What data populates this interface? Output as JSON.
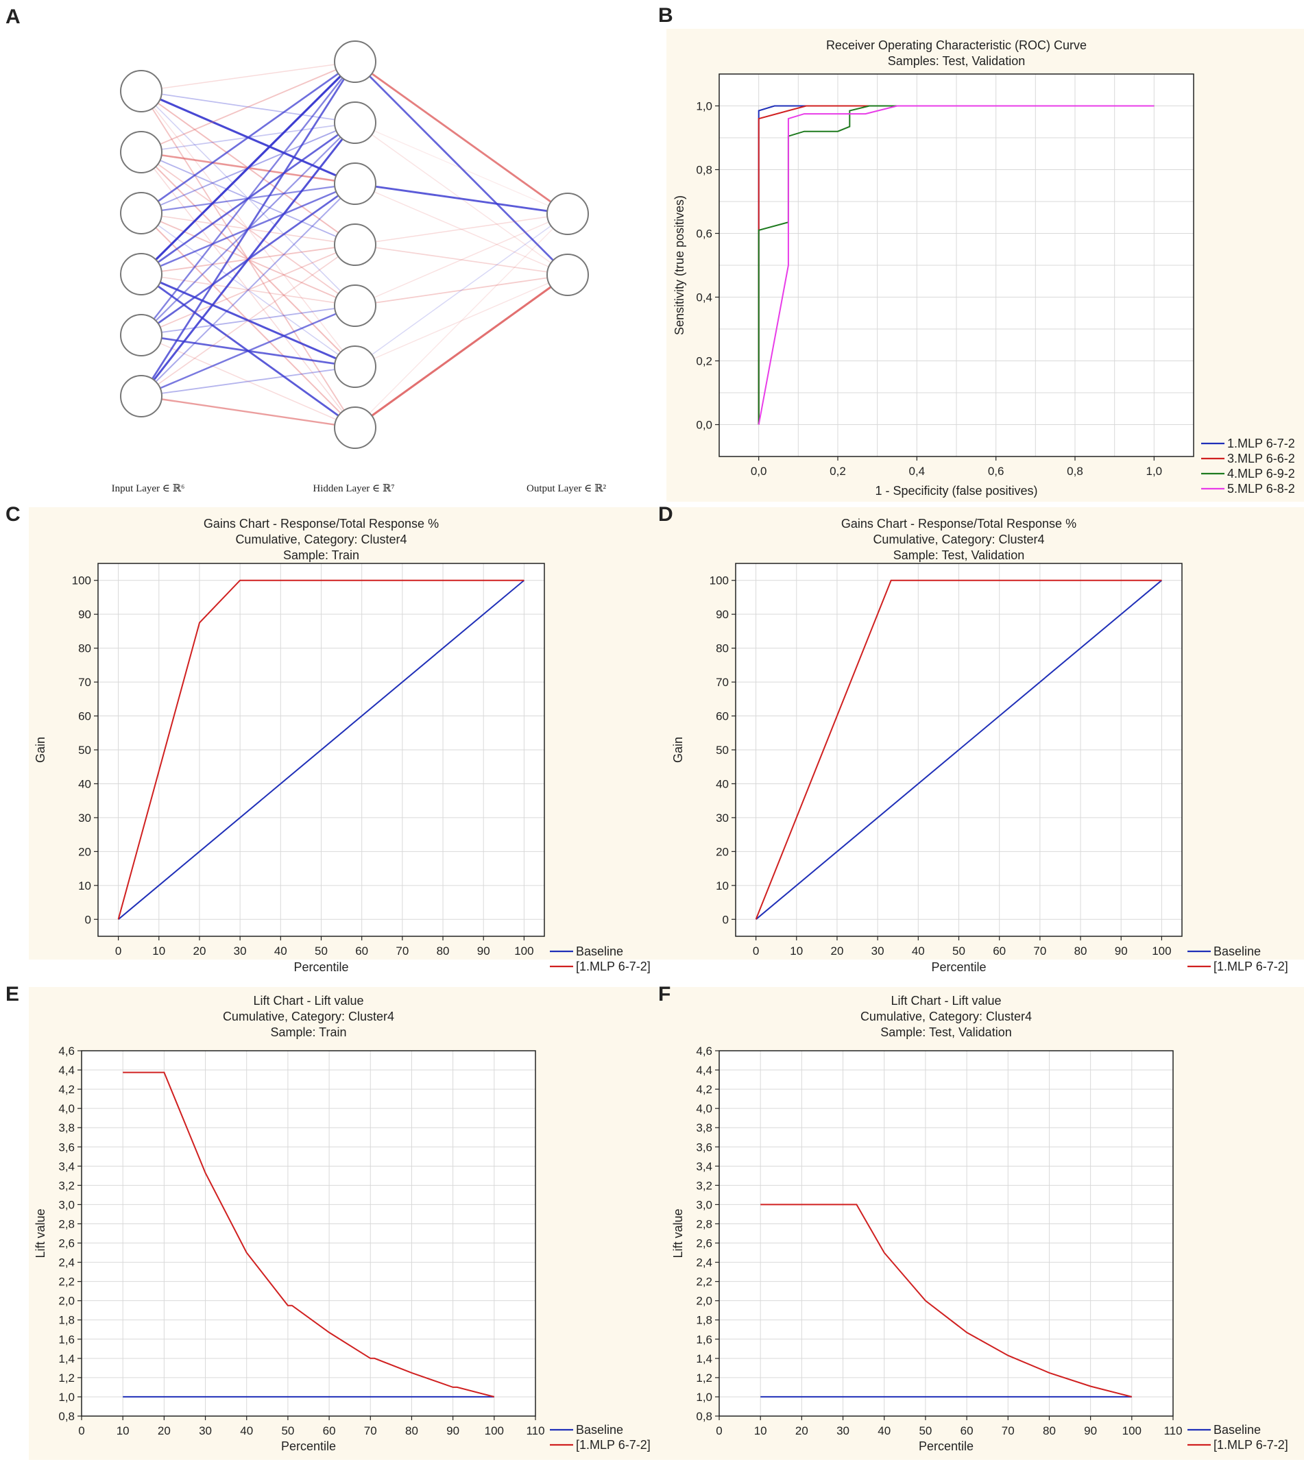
{
  "colors": {
    "panel_bg": "#fdf8ec",
    "grid": "#d9d9d9",
    "axis": "#222222",
    "blue": "#1f2fb8",
    "red": "#d02020",
    "green": "#1e7a1e",
    "magenta": "#e83ce8",
    "node_stroke": "#777777",
    "pos_weight": "#e06565",
    "neg_weight": "#3a3ad0"
  },
  "panel_letters": [
    "A",
    "B",
    "C",
    "D",
    "E",
    "F"
  ],
  "network": {
    "layers": [
      {
        "label": "Input Layer ∈ ℝ⁶",
        "nodes": 6
      },
      {
        "label": "Hidden Layer ∈ ℝ⁷",
        "nodes": 7
      },
      {
        "label": "Output Layer ∈ ℝ²",
        "nodes": 2
      }
    ],
    "input_hidden": [
      [
        0.15,
        -0.25,
        -0.85,
        0.35,
        -0.15,
        0.12,
        0.3
      ],
      [
        0.3,
        -0.2,
        0.6,
        -0.3,
        0.25,
        0.35,
        0.15
      ],
      [
        -0.65,
        -0.35,
        -0.5,
        0.2,
        0.3,
        -0.15,
        0.35
      ],
      [
        -0.9,
        -0.7,
        -0.6,
        0.3,
        0.2,
        -0.8,
        -0.75
      ],
      [
        -0.55,
        -0.45,
        -0.7,
        0.25,
        -0.3,
        -0.7,
        0.15
      ],
      [
        -0.7,
        -0.8,
        -0.35,
        0.2,
        -0.6,
        -0.3,
        0.55
      ]
    ],
    "hidden_output": [
      [
        0.75,
        -0.7
      ],
      [
        0.05,
        0.1
      ],
      [
        -0.75,
        0.12
      ],
      [
        0.15,
        0.2
      ],
      [
        0.12,
        0.25
      ],
      [
        -0.12,
        0.1
      ],
      [
        0.08,
        0.85
      ]
    ]
  },
  "charts": [
    {
      "id": "roc",
      "title_lines": [
        "Receiver Operating Characteristic (ROC) Curve",
        "Samples: Test, Validation"
      ],
      "chart_data": {
        "type": "line",
        "title": "Receiver Operating Characteristic (ROC) Curve",
        "xlabel": "1 - Specificity (false positives)",
        "ylabel": "Sensitivity (true positives)",
        "xlim": [
          -0.1,
          1.1
        ],
        "ylim": [
          -0.1,
          1.1
        ],
        "xticks": [
          0.0,
          0.2,
          0.4,
          0.6,
          0.8,
          1.0
        ],
        "yticks": [
          0.0,
          0.2,
          0.4,
          0.6,
          0.8,
          1.0
        ],
        "xtick_labels": [
          "0,0",
          "0,2",
          "0,4",
          "0,6",
          "0,8",
          "1,0"
        ],
        "ytick_labels": [
          "0,0",
          "0,2",
          "0,4",
          "0,6",
          "0,8",
          "1,0"
        ],
        "grid_step_x": 0.1,
        "grid_step_y": 0.1,
        "series": [
          {
            "name": "1.MLP 6-7-2",
            "color": "blue",
            "x": [
              0,
              0,
              0.04,
              1.0
            ],
            "y": [
              0,
              0.985,
              1.0,
              1.0
            ]
          },
          {
            "name": "3.MLP 6-6-2",
            "color": "red",
            "x": [
              0,
              0,
              0.12,
              1.0
            ],
            "y": [
              0,
              0.96,
              1.0,
              1.0
            ]
          },
          {
            "name": "4.MLP 6-9-2",
            "color": "green",
            "x": [
              0,
              0,
              0.075,
              0.075,
              0.115,
              0.2,
              0.23,
              0.23,
              0.28,
              0.33,
              1.0
            ],
            "y": [
              0,
              0.61,
              0.635,
              0.905,
              0.92,
              0.92,
              0.935,
              0.985,
              1.0,
              1.0,
              1.0
            ]
          },
          {
            "name": "5.MLP 6-8-2",
            "color": "magenta",
            "x": [
              0,
              0.075,
              0.075,
              0.115,
              0.27,
              0.35,
              1.0
            ],
            "y": [
              0,
              0.5,
              0.96,
              0.975,
              0.975,
              1.0,
              1.0
            ]
          }
        ]
      }
    },
    {
      "id": "gains-train",
      "title_lines": [
        "Gains Chart - Response/Total Response %",
        "Cumulative, Category: Cluster4",
        "Sample: Train"
      ],
      "chart_data": {
        "type": "line",
        "title": "Gains Chart - Response/Total Response %",
        "xlabel": "Percentile",
        "ylabel": "Gain",
        "xlim": [
          -5,
          105
        ],
        "ylim": [
          -5,
          105
        ],
        "xticks": [
          0,
          10,
          20,
          30,
          40,
          50,
          60,
          70,
          80,
          90,
          100
        ],
        "yticks": [
          0,
          10,
          20,
          30,
          40,
          50,
          60,
          70,
          80,
          90,
          100
        ],
        "xtick_labels": [
          "0",
          "10",
          "20",
          "30",
          "40",
          "50",
          "60",
          "70",
          "80",
          "90",
          "100"
        ],
        "ytick_labels": [
          "0",
          "10",
          "20",
          "30",
          "40",
          "50",
          "60",
          "70",
          "80",
          "90",
          "100"
        ],
        "grid_step_x": 10,
        "grid_step_y": 10,
        "series": [
          {
            "name": "Baseline",
            "color": "blue",
            "x": [
              0,
              100
            ],
            "y": [
              0,
              100
            ]
          },
          {
            "name": "[1.MLP 6-7-2]",
            "color": "red",
            "x": [
              0,
              20,
              30,
              100
            ],
            "y": [
              0,
              87.5,
              100,
              100
            ]
          }
        ]
      }
    },
    {
      "id": "gains-test",
      "title_lines": [
        "Gains Chart - Response/Total Response %",
        "Cumulative, Category: Cluster4",
        "Sample: Test, Validation"
      ],
      "chart_data": {
        "type": "line",
        "title": "Gains Chart - Response/Total Response %",
        "xlabel": "Percentile",
        "ylabel": "Gain",
        "xlim": [
          -5,
          105
        ],
        "ylim": [
          -5,
          105
        ],
        "xticks": [
          0,
          10,
          20,
          30,
          40,
          50,
          60,
          70,
          80,
          90,
          100
        ],
        "yticks": [
          0,
          10,
          20,
          30,
          40,
          50,
          60,
          70,
          80,
          90,
          100
        ],
        "xtick_labels": [
          "0",
          "10",
          "20",
          "30",
          "40",
          "50",
          "60",
          "70",
          "80",
          "90",
          "100"
        ],
        "ytick_labels": [
          "0",
          "10",
          "20",
          "30",
          "40",
          "50",
          "60",
          "70",
          "80",
          "90",
          "100"
        ],
        "grid_step_x": 10,
        "grid_step_y": 10,
        "series": [
          {
            "name": "Baseline",
            "color": "blue",
            "x": [
              0,
              100
            ],
            "y": [
              0,
              100
            ]
          },
          {
            "name": "[1.MLP 6-7-2]",
            "color": "red",
            "x": [
              0,
              33.3,
              100
            ],
            "y": [
              0,
              100,
              100
            ]
          }
        ]
      }
    },
    {
      "id": "lift-train",
      "title_lines": [
        "Lift Chart - Lift value",
        "Cumulative, Category: Cluster4",
        "Sample: Train"
      ],
      "chart_data": {
        "type": "line",
        "title": "Lift Chart - Lift value",
        "xlabel": "Percentile",
        "ylabel": "Lift value",
        "xlim": [
          0,
          110
        ],
        "ylim": [
          0.8,
          4.6
        ],
        "xticks": [
          0,
          10,
          20,
          30,
          40,
          50,
          60,
          70,
          80,
          90,
          100,
          110
        ],
        "yticks": [
          0.8,
          1.0,
          1.2,
          1.4,
          1.6,
          1.8,
          2.0,
          2.2,
          2.4,
          2.6,
          2.8,
          3.0,
          3.2,
          3.4,
          3.6,
          3.8,
          4.0,
          4.2,
          4.4,
          4.6
        ],
        "xtick_labels": [
          "0",
          "10",
          "20",
          "30",
          "40",
          "50",
          "60",
          "70",
          "80",
          "90",
          "100",
          "110"
        ],
        "ytick_labels": [
          "0,8",
          "1,0",
          "1,2",
          "1,4",
          "1,6",
          "1,8",
          "2,0",
          "2,2",
          "2,4",
          "2,6",
          "2,8",
          "3,0",
          "3,2",
          "3,4",
          "3,6",
          "3,8",
          "4,0",
          "4,2",
          "4,4",
          "4,6"
        ],
        "grid_step_x": 10,
        "grid_step_y": 0.2,
        "series": [
          {
            "name": "Baseline",
            "color": "blue",
            "x": [
              10,
              100
            ],
            "y": [
              1.0,
              1.0
            ]
          },
          {
            "name": "[1.MLP 6-7-2]",
            "color": "red",
            "x": [
              10,
              20,
              30,
              40,
              50,
              51,
              60,
              70,
              71,
              80,
              90,
              91,
              100
            ],
            "y": [
              4.375,
              4.375,
              3.33,
              2.5,
              1.95,
              1.95,
              1.67,
              1.4,
              1.4,
              1.25,
              1.1,
              1.1,
              1.0
            ]
          }
        ]
      }
    },
    {
      "id": "lift-test",
      "title_lines": [
        "Lift Chart - Lift value",
        "Cumulative, Category: Cluster4",
        "Sample: Test, Validation"
      ],
      "chart_data": {
        "type": "line",
        "title": "Lift Chart - Lift value",
        "xlabel": "Percentile",
        "ylabel": "Lift value",
        "xlim": [
          0,
          110
        ],
        "ylim": [
          0.8,
          4.6
        ],
        "xticks": [
          0,
          10,
          20,
          30,
          40,
          50,
          60,
          70,
          80,
          90,
          100,
          110
        ],
        "yticks": [
          0.8,
          1.0,
          1.2,
          1.4,
          1.6,
          1.8,
          2.0,
          2.2,
          2.4,
          2.6,
          2.8,
          3.0,
          3.2,
          3.4,
          3.6,
          3.8,
          4.0,
          4.2,
          4.4,
          4.6
        ],
        "xtick_labels": [
          "0",
          "10",
          "20",
          "30",
          "40",
          "50",
          "60",
          "70",
          "80",
          "90",
          "100",
          "110"
        ],
        "ytick_labels": [
          "0,8",
          "1,0",
          "1,2",
          "1,4",
          "1,6",
          "1,8",
          "2,0",
          "2,2",
          "2,4",
          "2,6",
          "2,8",
          "3,0",
          "3,2",
          "3,4",
          "3,6",
          "3,8",
          "4,0",
          "4,2",
          "4,4",
          "4,6"
        ],
        "grid_step_x": 10,
        "grid_step_y": 0.2,
        "series": [
          {
            "name": "Baseline",
            "color": "blue",
            "x": [
              10,
              100
            ],
            "y": [
              1.0,
              1.0
            ]
          },
          {
            "name": "[1.MLP 6-7-2]",
            "color": "red",
            "x": [
              10,
              33.3,
              40,
              50,
              60,
              70,
              80,
              90,
              100
            ],
            "y": [
              3.0,
              3.0,
              2.5,
              2.0,
              1.67,
              1.43,
              1.25,
              1.11,
              1.0
            ]
          }
        ]
      }
    }
  ]
}
